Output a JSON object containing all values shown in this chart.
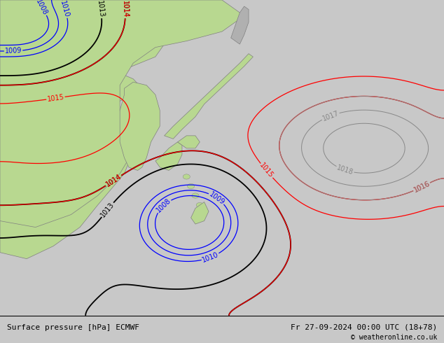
{
  "title_left": "Surface pressure [hPa] ECMWF",
  "title_right": "Fr 27-09-2024 00:00 UTC (18+78)",
  "copyright": "© weatheronline.co.uk",
  "figsize": [
    6.34,
    4.9
  ],
  "dpi": 100,
  "bg_color": "#c8c8c8",
  "land_color": "#b8d890",
  "bottom_bar_color": "#e0e0e0",
  "font_size_labels": 7,
  "font_size_bottom": 8,
  "black_levels": [
    1013.0,
    1014.0
  ],
  "red_levels": [
    1014.0,
    1015.0,
    1016.0
  ],
  "blue_levels": [
    1008.0,
    1009.0,
    1010.0
  ],
  "gray_levels": [
    1016.0,
    1017.0,
    1018.0
  ]
}
